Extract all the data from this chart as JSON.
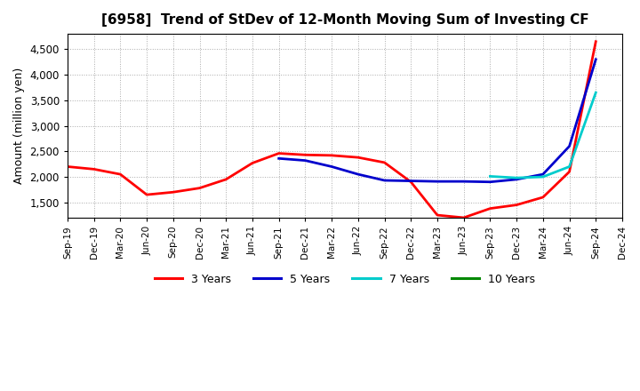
{
  "title": "[6958]  Trend of StDev of 12-Month Moving Sum of Investing CF",
  "ylabel": "Amount (million yen)",
  "background_color": "#ffffff",
  "grid_color": "#aaaaaa",
  "ylim": [
    1200,
    4800
  ],
  "yticks": [
    1500,
    2000,
    2500,
    3000,
    3500,
    4000,
    4500
  ],
  "xtick_labels": [
    "Sep-19",
    "Dec-19",
    "Mar-20",
    "Jun-20",
    "Sep-20",
    "Dec-20",
    "Mar-21",
    "Jun-21",
    "Sep-21",
    "Dec-21",
    "Mar-22",
    "Jun-22",
    "Sep-22",
    "Dec-22",
    "Mar-23",
    "Jun-23",
    "Sep-23",
    "Dec-23",
    "Mar-24",
    "Jun-24",
    "Sep-24",
    "Dec-24"
  ],
  "series": {
    "3 Years": {
      "color": "#ff0000",
      "x_indices": [
        0,
        1,
        2,
        3,
        4,
        5,
        6,
        7,
        8,
        9,
        10,
        11,
        12,
        13,
        14,
        15,
        16,
        17,
        18,
        19,
        20
      ],
      "values": [
        2200,
        2150,
        2050,
        1650,
        1700,
        1780,
        1950,
        2270,
        2460,
        2430,
        2420,
        2380,
        2280,
        1900,
        1250,
        1200,
        1380,
        1450,
        1600,
        2100,
        4650
      ]
    },
    "5 Years": {
      "color": "#0000cc",
      "x_indices": [
        8,
        9,
        10,
        11,
        12,
        13,
        14,
        15,
        16,
        17,
        18,
        19,
        20
      ],
      "values": [
        2360,
        2320,
        2200,
        2050,
        1930,
        1920,
        1910,
        1910,
        1900,
        1950,
        2050,
        2600,
        4300
      ]
    },
    "7 Years": {
      "color": "#00cccc",
      "x_indices": [
        16,
        17,
        18,
        19,
        20
      ],
      "values": [
        2010,
        1980,
        2000,
        2200,
        3650
      ]
    },
    "10 Years": {
      "color": "#008800",
      "x_indices": [],
      "values": []
    }
  },
  "legend": [
    {
      "label": "3 Years",
      "color": "#ff0000"
    },
    {
      "label": "5 Years",
      "color": "#0000cc"
    },
    {
      "label": "7 Years",
      "color": "#00cccc"
    },
    {
      "label": "10 Years",
      "color": "#008800"
    }
  ]
}
